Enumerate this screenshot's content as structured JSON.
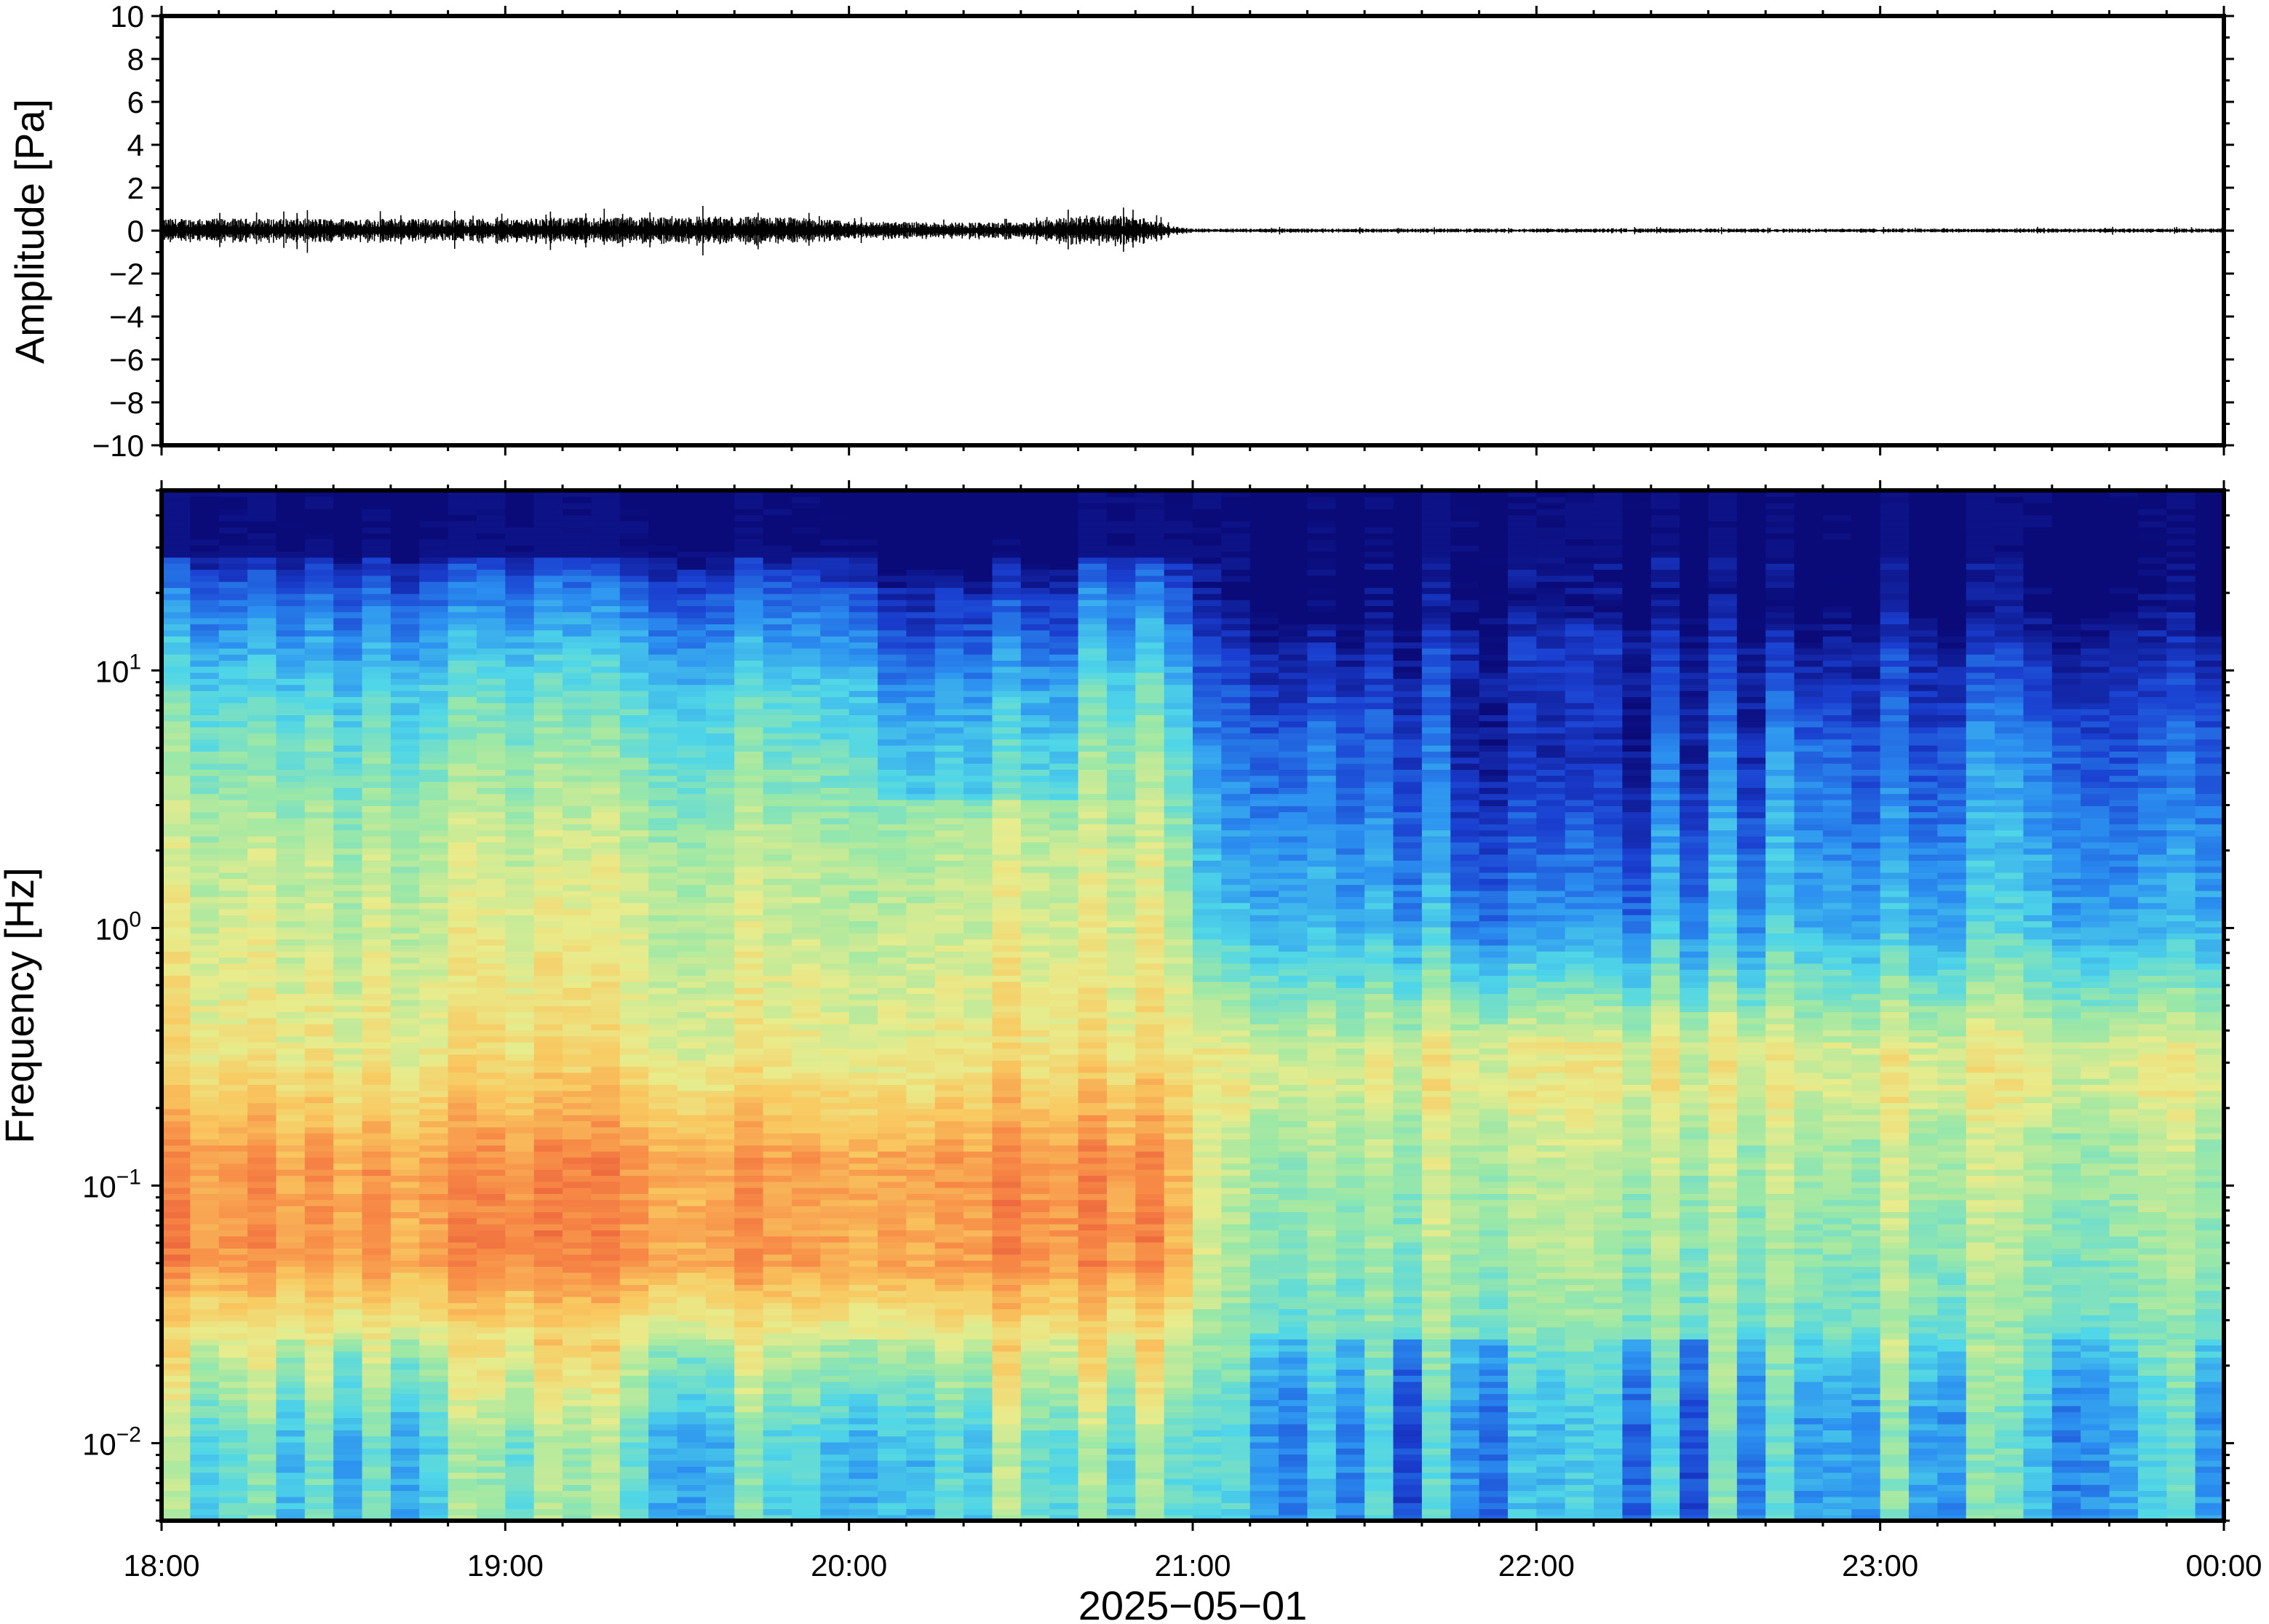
{
  "chart_data": [
    {
      "type": "line",
      "panel": "waveform",
      "ylabel": "Amplitude [Pa]",
      "ylim": [
        -10,
        10
      ],
      "yticks": [
        -10,
        -8,
        -6,
        -4,
        -2,
        0,
        2,
        4,
        6,
        8,
        10
      ],
      "ytick_labels": [
        "−10",
        "−8",
        "−6",
        "−4",
        "−2",
        "0",
        "2",
        "4",
        "6",
        "8",
        "10"
      ],
      "xlim": [
        "18:00",
        "00:00"
      ],
      "grid": false,
      "envelope": {
        "x_hours": [
          0,
          0.5,
          1.0,
          1.5,
          1.85,
          2.0,
          2.5,
          2.7,
          2.85,
          2.95,
          3.0,
          6.0
        ],
        "half_amplitude_pa": [
          0.45,
          0.45,
          0.45,
          0.55,
          0.5,
          0.35,
          0.3,
          0.6,
          0.5,
          0.15,
          0.08,
          0.08
        ]
      }
    },
    {
      "type": "heatmap",
      "panel": "spectrogram",
      "ylabel": "Frequency [Hz]",
      "yscale": "log",
      "ylim": [
        0.005,
        50
      ],
      "yticks": [
        0.01,
        0.1,
        1,
        10
      ],
      "ytick_labels": [
        {
          "base": "10",
          "exp": "−2"
        },
        {
          "base": "10",
          "exp": "−1"
        },
        {
          "base": "10",
          "exp": "0"
        },
        {
          "base": "10",
          "exp": "1"
        }
      ],
      "xlabel": "2025−05−01",
      "xticks": [
        "18:00",
        "19:00",
        "20:00",
        "21:00",
        "22:00",
        "23:00",
        "00:00"
      ],
      "xlim_hours": [
        0,
        6
      ],
      "colormap": [
        "#0a0a78",
        "#1a3fd0",
        "#2b8ff0",
        "#4fd6e8",
        "#9ce8a6",
        "#e8ec8c",
        "#f9c860",
        "#f78a46",
        "#e8543a"
      ],
      "grid": false
    }
  ]
}
